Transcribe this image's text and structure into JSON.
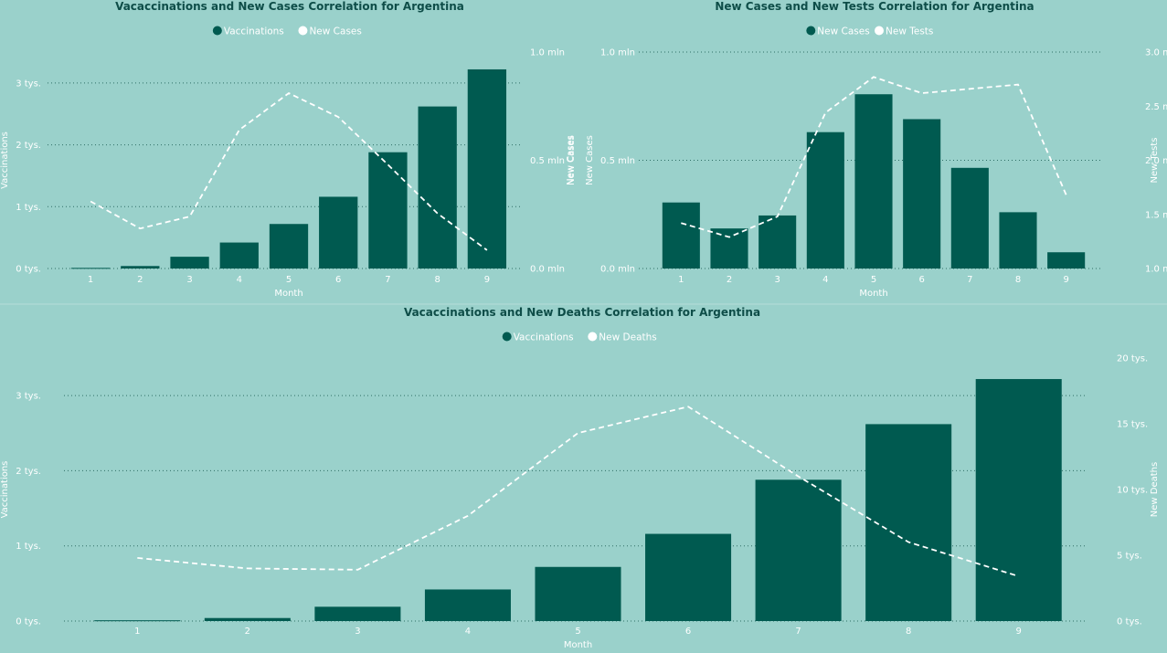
{
  "chart_data": [
    {
      "type": "bar",
      "title": "Vacaccinations and New Cases Correlation for Argentina",
      "xlabel": "Month",
      "ylabel": "Vaccinations",
      "y2label": "New Cases",
      "categories": [
        "1",
        "2",
        "3",
        "4",
        "5",
        "6",
        "7",
        "8",
        "9"
      ],
      "ylim": [
        0,
        3500
      ],
      "y2lim": [
        0,
        1000000
      ],
      "y_ticks": [
        {
          "v": 0,
          "label": "0 tys."
        },
        {
          "v": 1000,
          "label": "1 tys."
        },
        {
          "v": 2000,
          "label": "2 tys."
        },
        {
          "v": 3000,
          "label": "3 tys."
        }
      ],
      "y2_ticks": [
        {
          "v": 0,
          "label": "0.0 mln"
        },
        {
          "v": 500000,
          "label": "0.5 mln"
        },
        {
          "v": 1000000,
          "label": "1.0 mln"
        }
      ],
      "legend": [
        "Vaccinations",
        "New Cases"
      ],
      "legend_colors": [
        "#005a50",
        "#ffffff"
      ],
      "series": [
        {
          "name": "Vaccinations",
          "axis": "left",
          "kind": "bar",
          "values": [
            10,
            40,
            190,
            420,
            720,
            1160,
            1880,
            2620,
            3220
          ]
        },
        {
          "name": "New Cases",
          "axis": "right",
          "kind": "line",
          "values": [
            310000,
            185000,
            240000,
            640000,
            810000,
            700000,
            480000,
            255000,
            85000
          ]
        }
      ]
    },
    {
      "type": "bar",
      "title": "New Cases and New Tests Correlation for Argentina",
      "xlabel": "Month",
      "ylabel": "New Cases",
      "y2label": "New Tests",
      "categories": [
        "1",
        "2",
        "3",
        "4",
        "5",
        "6",
        "7",
        "8",
        "9"
      ],
      "ylim": [
        0,
        1000000
      ],
      "y2lim": [
        1000000,
        3000000
      ],
      "y_ticks": [
        {
          "v": 0,
          "label": "0.0 mln"
        },
        {
          "v": 500000,
          "label": "0.5 mln"
        },
        {
          "v": 1000000,
          "label": "1.0 mln"
        }
      ],
      "y2_ticks": [
        {
          "v": 1000000,
          "label": "1.0 mln"
        },
        {
          "v": 1500000,
          "label": "1.5 mln"
        },
        {
          "v": 2000000,
          "label": "2.0 mln"
        },
        {
          "v": 2500000,
          "label": "2.5 mln"
        },
        {
          "v": 3000000,
          "label": "3.0 mln"
        }
      ],
      "legend": [
        "New Cases",
        "New Tests"
      ],
      "legend_colors": [
        "#005a50",
        "#ffffff"
      ],
      "series": [
        {
          "name": "New Cases",
          "axis": "left",
          "kind": "bar",
          "values": [
            305000,
            185000,
            245000,
            630000,
            805000,
            690000,
            465000,
            260000,
            75000
          ]
        },
        {
          "name": "New Tests",
          "axis": "right",
          "kind": "line",
          "values": [
            1420000,
            1290000,
            1480000,
            2440000,
            2770000,
            2620000,
            2660000,
            2700000,
            1680000
          ]
        }
      ]
    },
    {
      "type": "bar",
      "title": "Vacaccinations and New Deaths Correlation for Argentina",
      "xlabel": "Month",
      "ylabel": "Vaccinations",
      "y2label": "New Deaths",
      "categories": [
        "1",
        "2",
        "3",
        "4",
        "5",
        "6",
        "7",
        "8",
        "9"
      ],
      "ylim": [
        0,
        3500
      ],
      "y2lim": [
        0,
        20000
      ],
      "y_ticks": [
        {
          "v": 0,
          "label": "0 tys."
        },
        {
          "v": 1000,
          "label": "1 tys."
        },
        {
          "v": 2000,
          "label": "2 tys."
        },
        {
          "v": 3000,
          "label": "3 tys."
        }
      ],
      "y2_ticks": [
        {
          "v": 0,
          "label": "0 tys."
        },
        {
          "v": 5000,
          "label": "5 tys."
        },
        {
          "v": 10000,
          "label": "10 tys."
        },
        {
          "v": 15000,
          "label": "15 tys."
        },
        {
          "v": 20000,
          "label": "20 tys."
        }
      ],
      "legend": [
        "Vaccinations",
        "New Deaths"
      ],
      "legend_colors": [
        "#005a50",
        "#ffffff"
      ],
      "series": [
        {
          "name": "Vaccinations",
          "axis": "left",
          "kind": "bar",
          "values": [
            10,
            40,
            190,
            420,
            720,
            1160,
            1880,
            2620,
            3220
          ]
        },
        {
          "name": "New Deaths",
          "axis": "right",
          "kind": "line",
          "values": [
            4800,
            4000,
            3900,
            8000,
            14300,
            16300,
            11000,
            6000,
            3400
          ]
        }
      ]
    }
  ]
}
